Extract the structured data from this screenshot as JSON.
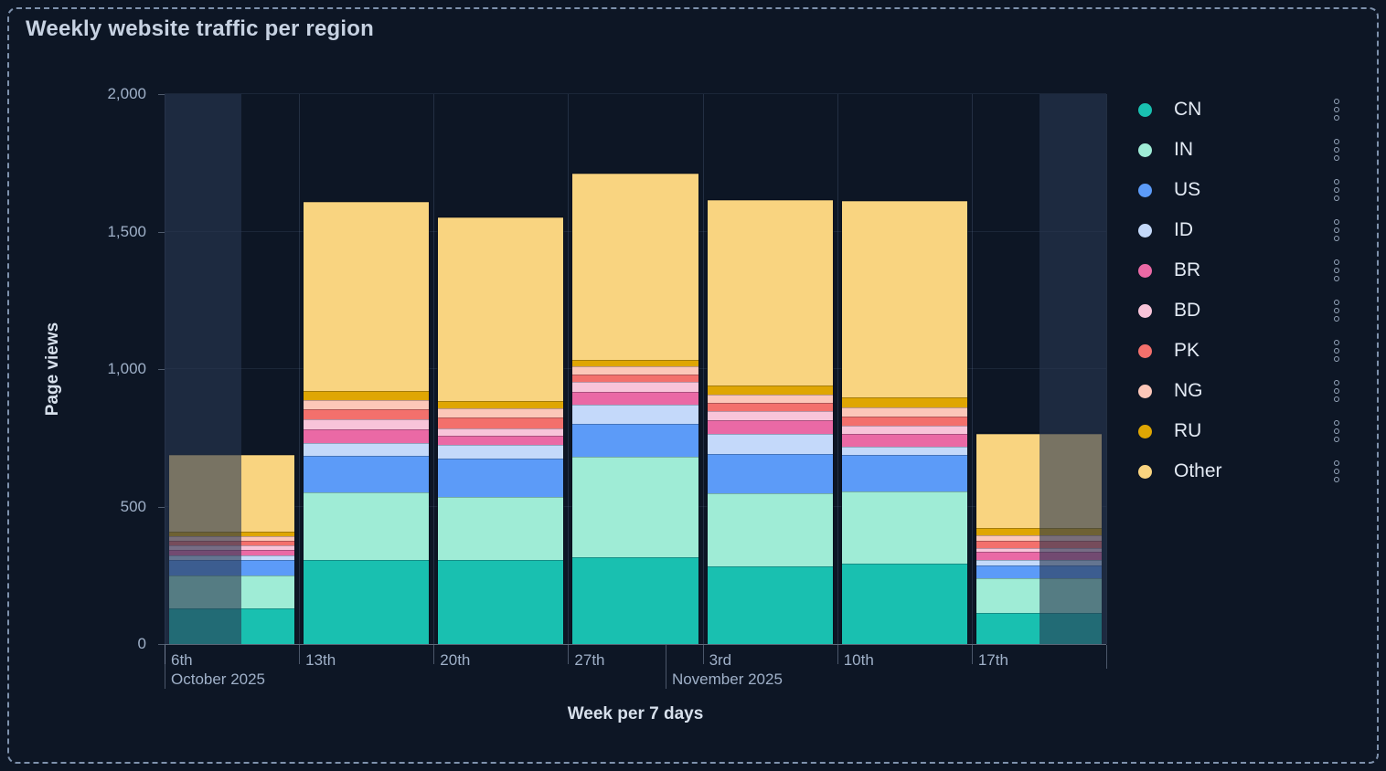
{
  "window": {
    "background_color": "#0d1625",
    "border_color": "#7e91ac",
    "border_style": "dashed"
  },
  "title": "Weekly website traffic per region",
  "chart_data": {
    "type": "bar",
    "stacked": true,
    "orientation": "vertical",
    "title": "Weekly website traffic per region",
    "xlabel": "Week per 7 days",
    "ylabel": "Page views",
    "ylim": [
      0,
      2000
    ],
    "grid": true,
    "legend_position": "right",
    "yticks": [
      {
        "value": 0,
        "label": "0"
      },
      {
        "value": 500,
        "label": "500"
      },
      {
        "value": 1000,
        "label": "1,000"
      },
      {
        "value": 1500,
        "label": "1,500"
      },
      {
        "value": 2000,
        "label": "2,000"
      }
    ],
    "categories": [
      "6th",
      "13th",
      "20th",
      "27th",
      "3rd",
      "10th",
      "17th"
    ],
    "month_separators": [
      {
        "label": "October 2025",
        "x_fraction": 0.0
      },
      {
        "label": "November 2025",
        "x_fraction": 0.532
      }
    ],
    "series": [
      {
        "name": "CN",
        "color": "#19c0b0",
        "values": [
          130,
          305,
          305,
          316,
          282,
          293,
          114
        ]
      },
      {
        "name": "IN",
        "color": "#9fecd6",
        "values": [
          120,
          245,
          229,
          365,
          266,
          261,
          124
        ]
      },
      {
        "name": "US",
        "color": "#5c9bf8",
        "values": [
          55,
          133,
          141,
          119,
          144,
          133,
          47
        ]
      },
      {
        "name": "ID",
        "color": "#c4d9fa",
        "values": [
          16,
          48,
          50,
          69,
          72,
          30,
          22
        ]
      },
      {
        "name": "BR",
        "color": "#ea69a5",
        "values": [
          22,
          50,
          33,
          48,
          50,
          47,
          29
        ]
      },
      {
        "name": "BD",
        "color": "#f8c4d9",
        "values": [
          15,
          36,
          27,
          35,
          33,
          30,
          13
        ]
      },
      {
        "name": "PK",
        "color": "#f3706c",
        "values": [
          18,
          36,
          40,
          28,
          30,
          33,
          25
        ]
      },
      {
        "name": "NG",
        "color": "#fcc7b9",
        "values": [
          15,
          35,
          33,
          31,
          29,
          33,
          22
        ]
      },
      {
        "name": "RU",
        "color": "#dfa603",
        "values": [
          19,
          33,
          26,
          24,
          33,
          37,
          25
        ]
      },
      {
        "name": "Other",
        "color": "#f9d480",
        "values": [
          277,
          687,
          667,
          676,
          676,
          716,
          345
        ]
      }
    ],
    "bar_totals": [
      687,
      1608,
      1551,
      1711,
      1615,
      1613,
      766
    ],
    "out_of_range_bands": [
      {
        "from_fraction": 0.0,
        "to_fraction": 0.082
      },
      {
        "from_fraction": 0.929,
        "to_fraction": 1.0
      }
    ]
  },
  "legend": {
    "menu_icon": "kebab-vertical-dots"
  }
}
